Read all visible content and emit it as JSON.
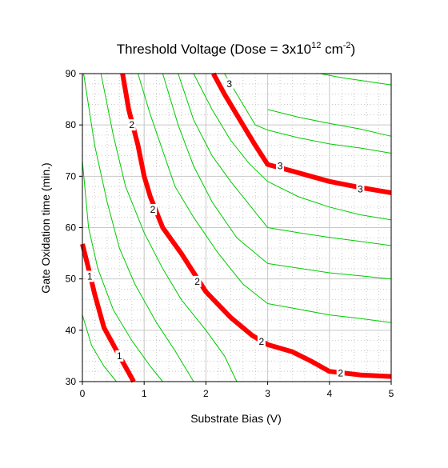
{
  "chart_data": {
    "type": "line",
    "title": {
      "prefix": "Threshold Voltage (Dose = 3x10",
      "exp1": "12",
      "middle": " cm",
      "exp2": "-2",
      "suffix": ")"
    },
    "xlabel": "Substrate Bias (V)",
    "ylabel": "Gate Oxidation time (min.)",
    "xlim": [
      0,
      5
    ],
    "ylim": [
      30,
      90
    ],
    "x_ticks": [
      "0",
      "1",
      "2",
      "3",
      "4",
      "5"
    ],
    "y_ticks": [
      "30",
      "40",
      "50",
      "60",
      "70",
      "80",
      "90"
    ],
    "grid": true,
    "legend": "none",
    "colors": {
      "major_contour": "#ff0000",
      "minor_contour": "#00cc00",
      "grid": "#c8c8c8"
    },
    "series": [
      {
        "label": "1",
        "x": [
          0.0,
          0.1,
          0.2,
          0.35,
          0.6,
          0.83
        ],
        "y": [
          56.8,
          52,
          47,
          40.5,
          35,
          30
        ]
      },
      {
        "label": "2",
        "x": [
          0.65,
          0.75,
          0.9,
          1.0,
          1.1,
          1.3,
          1.6,
          2.0,
          2.4,
          2.75,
          3.0,
          3.4,
          3.7,
          4.0,
          4.5,
          5.0
        ],
        "y": [
          90,
          83,
          76,
          70,
          66,
          60,
          55,
          47.5,
          42.5,
          39,
          37.2,
          35.8,
          34,
          32,
          31.3,
          31
        ]
      },
      {
        "label": "3",
        "x": [
          2.12,
          2.3,
          2.6,
          2.8,
          3.0,
          3.4,
          4.0,
          4.5,
          5.0
        ],
        "y": [
          90,
          86,
          80,
          76,
          72.3,
          71,
          69,
          67.8,
          66.8
        ]
      }
    ],
    "contour_labels": [
      {
        "text": "1",
        "x": 0.12,
        "y": 50.5
      },
      {
        "text": "1",
        "x": 0.6,
        "y": 35
      },
      {
        "text": "2",
        "x": 0.8,
        "y": 80
      },
      {
        "text": "2",
        "x": 1.14,
        "y": 63.5
      },
      {
        "text": "2",
        "x": 1.86,
        "y": 49.5
      },
      {
        "text": "2",
        "x": 2.9,
        "y": 37.8
      },
      {
        "text": "2",
        "x": 4.18,
        "y": 31.6
      },
      {
        "text": "3",
        "x": 2.38,
        "y": 88
      },
      {
        "text": "3",
        "x": 3.2,
        "y": 72
      },
      {
        "text": "3",
        "x": 4.5,
        "y": 67.5
      }
    ],
    "minor_contours": [
      {
        "x": [
          0.0,
          0.15,
          0.35,
          0.55
        ],
        "y": [
          43,
          37,
          33,
          30
        ]
      },
      {
        "x": [
          0.0,
          0.1,
          0.25,
          0.5,
          0.8,
          1.1,
          1.3
        ],
        "y": [
          73,
          60,
          52,
          44,
          38,
          33,
          30
        ]
      },
      {
        "x": [
          0.02,
          0.2,
          0.4,
          0.6,
          0.85,
          1.2,
          1.5,
          1.8
        ],
        "y": [
          90,
          76,
          65,
          56,
          49,
          41.5,
          36,
          30
        ]
      },
      {
        "x": [
          0.3,
          0.5,
          0.7,
          1.0,
          1.3,
          1.6,
          2.0,
          2.3,
          2.5
        ],
        "y": [
          90,
          78,
          68,
          59,
          52,
          46,
          40,
          35,
          30
        ]
      },
      {
        "x": [
          0.9,
          1.1,
          1.3,
          1.5,
          1.8,
          2.2,
          2.6,
          3.0
        ],
        "y": [
          90,
          82,
          75,
          68,
          62,
          55,
          49,
          45.2
        ]
      },
      {
        "x": [
          3.0,
          3.5,
          4.0,
          4.5,
          5.0
        ],
        "y": [
          45.2,
          44.1,
          43,
          42.3,
          41.5
        ]
      },
      {
        "x": [
          1.3,
          1.55,
          1.8,
          2.1,
          2.5,
          3.0
        ],
        "y": [
          90,
          80,
          72,
          65,
          58,
          53
        ]
      },
      {
        "x": [
          3.0,
          3.5,
          4.0,
          4.5,
          5.0
        ],
        "y": [
          53,
          52.1,
          51.2,
          50.6,
          50
        ]
      },
      {
        "x": [
          1.55,
          1.8,
          2.1,
          2.4,
          2.8,
          3.0
        ],
        "y": [
          90,
          81,
          74,
          69,
          63,
          60
        ]
      },
      {
        "x": [
          3.0,
          3.5,
          4.0,
          4.5,
          5.0
        ],
        "y": [
          60,
          59,
          58.1,
          57.3,
          56.5
        ]
      },
      {
        "x": [
          1.8,
          2.1,
          2.4,
          2.7,
          3.0
        ],
        "y": [
          90,
          83,
          77,
          72.5,
          69
        ]
      },
      {
        "x": [
          3.0,
          3.5,
          4.0,
          4.5,
          5.0
        ],
        "y": [
          69,
          66,
          64,
          62.5,
          61.5
        ]
      },
      {
        "x": [
          2.3,
          2.55,
          2.8,
          3.0
        ],
        "y": [
          90,
          85,
          80,
          79
        ]
      },
      {
        "x": [
          3.0,
          3.5,
          4.0,
          4.5,
          5.0
        ],
        "y": [
          79,
          77.5,
          76.3,
          75.5,
          74.5
        ]
      },
      {
        "x": [
          3.0,
          3.5,
          4.0,
          4.5,
          5.0
        ],
        "y": [
          83,
          81.5,
          80.3,
          79.2,
          77.8
        ]
      },
      {
        "x": [
          3.85,
          4.2,
          4.6,
          5.0
        ],
        "y": [
          90,
          89.2,
          88.5,
          87.8
        ]
      }
    ]
  }
}
